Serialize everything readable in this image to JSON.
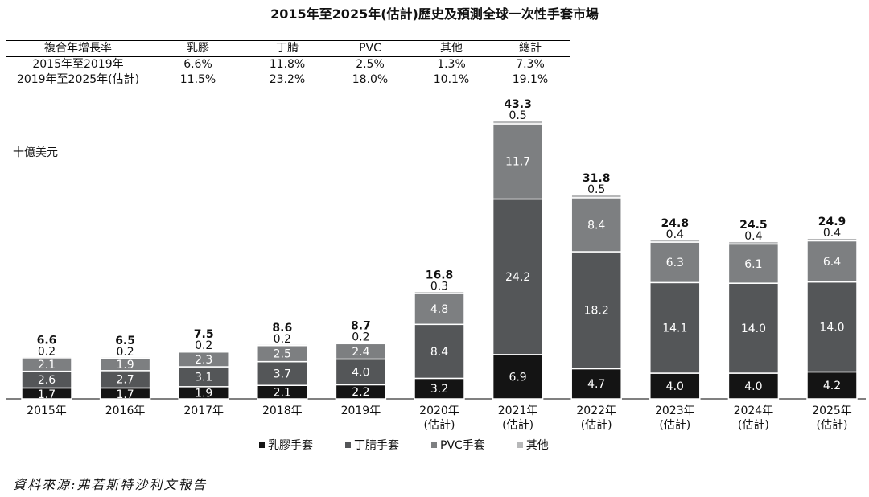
{
  "title": "2015年至2025年(估計)歷史及預測全球一次性手套市場",
  "cagr_table": {
    "headers": [
      "複合年增長率",
      "乳膠",
      "丁腈",
      "PVC",
      "其他",
      "總計"
    ],
    "rows": [
      [
        "2015年至2019年",
        "6.6%",
        "11.8%",
        "2.5%",
        "1.3%",
        "7.3%"
      ],
      [
        "2019年至2025年(估計)",
        "11.5%",
        "23.2%",
        "18.0%",
        "10.1%",
        "19.1%"
      ]
    ]
  },
  "unit_label": "十億美元",
  "source": "資料來源:弗若斯特沙利文報告",
  "colors": {
    "latex": "#141414",
    "nitrile": "#545658",
    "pvc": "#7d7f81",
    "other": "#b7b8b9"
  },
  "chart_data": {
    "type": "bar",
    "stacked": true,
    "title": "2015年至2025年(估計)歷史及預測全球一次性手套市場",
    "ylabel": "十億美元",
    "categories": [
      [
        "2015年"
      ],
      [
        "2016年"
      ],
      [
        "2017年"
      ],
      [
        "2018年"
      ],
      [
        "2019年"
      ],
      [
        "2020年",
        "(估計)"
      ],
      [
        "2021年",
        "(估計)"
      ],
      [
        "2022年",
        "(估計)"
      ],
      [
        "2023年",
        "(估計)"
      ],
      [
        "2024年",
        "(估計)"
      ],
      [
        "2025年",
        "(估計)"
      ]
    ],
    "series": [
      {
        "name": "乳膠手套",
        "key": "latex",
        "values": [
          1.7,
          1.7,
          1.9,
          2.1,
          2.2,
          3.2,
          6.9,
          4.7,
          4.0,
          4.0,
          4.2
        ]
      },
      {
        "name": "丁腈手套",
        "key": "nitrile",
        "values": [
          2.6,
          2.7,
          3.1,
          3.7,
          4.0,
          8.4,
          24.2,
          18.2,
          14.1,
          14.0,
          14.0
        ]
      },
      {
        "name": "PVC手套",
        "key": "pvc",
        "values": [
          2.1,
          1.9,
          2.3,
          2.5,
          2.4,
          4.8,
          11.7,
          8.4,
          6.3,
          6.1,
          6.4
        ]
      },
      {
        "name": "其他",
        "key": "other",
        "values": [
          0.2,
          0.2,
          0.2,
          0.2,
          0.2,
          0.3,
          0.5,
          0.5,
          0.4,
          0.4,
          0.4
        ]
      }
    ],
    "totals": [
      6.6,
      6.5,
      7.5,
      8.6,
      8.7,
      16.8,
      43.3,
      31.8,
      24.8,
      24.5,
      24.9
    ],
    "ylim": [
      0,
      43.3
    ],
    "legend_position": "bottom"
  }
}
